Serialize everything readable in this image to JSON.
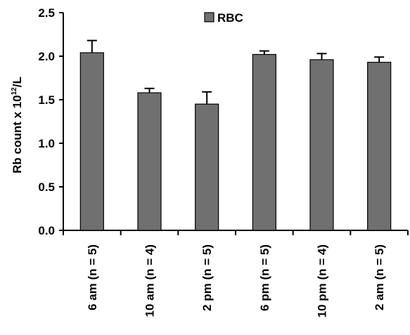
{
  "chart_data": {
    "type": "bar",
    "title": "",
    "xlabel": "",
    "ylabel_main": "Rb count x 10",
    "ylabel_sup": "12",
    "ylabel_tail": "/L",
    "ylim": [
      0,
      2.5
    ],
    "yticks": [
      "0.0",
      "0.5",
      "1.0",
      "1.5",
      "2.0",
      "2.5"
    ],
    "categories": [
      "6 am (n = 5)",
      "10 am (n = 4)",
      "2 pm (n = 5)",
      "6 pm (n = 5)",
      "10 pm (n = 4)",
      "2 am (n = 5)"
    ],
    "series": [
      {
        "name": "RBC",
        "values": [
          2.04,
          1.58,
          1.45,
          2.02,
          1.96,
          1.93
        ],
        "errors": [
          0.14,
          0.05,
          0.14,
          0.04,
          0.07,
          0.06
        ]
      }
    ],
    "legend": "top-center",
    "grid": false,
    "colors": {
      "bar": "#707070",
      "axis": "#000000"
    }
  }
}
